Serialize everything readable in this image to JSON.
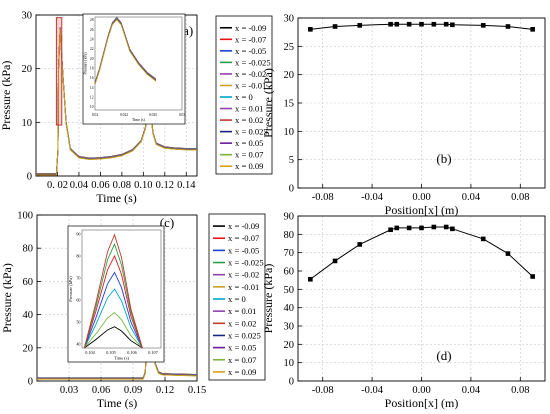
{
  "chart_data": [
    {
      "id": "a",
      "panel_label": "(a)",
      "type": "line",
      "xlabel": "Time (s)",
      "ylabel": "Pressure (kPa)",
      "xlim": [
        0.0,
        0.15
      ],
      "ylim": [
        0,
        30
      ],
      "xticks": [
        0.02,
        0.04,
        0.06,
        0.08,
        0.1,
        0.12,
        0.14
      ],
      "xtick_labels": [
        "0. 02",
        "0.04",
        "0.06",
        "0.08",
        "0.10",
        "0.12",
        "0.14"
      ],
      "yticks": [
        0,
        10,
        20,
        30
      ],
      "ytick_labels": [
        "0",
        "10",
        "20",
        "30"
      ],
      "grid": true,
      "legend_position": "right",
      "series": [
        {
          "name": "x = -0.09",
          "color": "#000000"
        },
        {
          "name": "x = -0.07",
          "color": "#e8141b"
        },
        {
          "name": "x = -0.05",
          "color": "#1f3fd8"
        },
        {
          "name": "x = -0.025",
          "color": "#2a9d4a"
        },
        {
          "name": "x = -0.02",
          "color": "#8e44ad"
        },
        {
          "name": "x = -0.01",
          "color": "#c9a227"
        },
        {
          "name": "x = 0",
          "color": "#00a6c8"
        },
        {
          "name": "x = 0.01",
          "color": "#8e44ad"
        },
        {
          "name": "x = 0.02",
          "color": "#c0392b"
        },
        {
          "name": "x = 0.025",
          "color": "#1a237e"
        },
        {
          "name": "x = 0.05",
          "color": "#6a1b9a"
        },
        {
          "name": "x = 0.07",
          "color": "#7cb342"
        },
        {
          "name": "x = 0.09",
          "color": "#d4a017"
        }
      ],
      "curve": {
        "x": [
          0.0,
          0.019,
          0.0205,
          0.021,
          0.0225,
          0.025,
          0.028,
          0.032,
          0.04,
          0.05,
          0.06,
          0.07,
          0.08,
          0.09,
          0.098,
          0.102,
          0.104,
          0.1055,
          0.107,
          0.109,
          0.112,
          0.12,
          0.13,
          0.14,
          0.15
        ],
        "y": [
          0.3,
          0.3,
          5.0,
          20.0,
          27.5,
          19.0,
          10.0,
          5.0,
          3.5,
          3.2,
          3.3,
          3.5,
          3.9,
          4.8,
          6.5,
          9.0,
          12.0,
          14.0,
          11.5,
          8.0,
          6.0,
          5.3,
          5.1,
          5.0,
          5.0
        ]
      },
      "highlight_box": {
        "x": [
          0.019,
          0.024
        ],
        "y": [
          9.5,
          29.5
        ]
      },
      "inset": {
        "xlim": [
          0.02,
          0.03
        ],
        "ylim": [
          0,
          28
        ],
        "xtick_labels": [
          "0.02",
          "0.022",
          "0.025",
          "0.03"
        ],
        "ytick_labels": [
          "28",
          "26",
          "24",
          "22",
          "20",
          "18",
          "16",
          "14",
          "12",
          "10"
        ],
        "xlabel": "Time (s)",
        "ylabel": "Pressure (kPa)",
        "curve": {
          "x": [
            0.02,
            0.0205,
            0.021,
            0.0215,
            0.022,
            0.0225,
            0.023,
            0.0235,
            0.024,
            0.025,
            0.026,
            0.027
          ],
          "y": [
            8,
            12,
            17,
            22,
            26,
            27.5,
            26,
            22,
            18,
            14,
            11,
            9
          ]
        }
      }
    },
    {
      "id": "b",
      "panel_label": "(b)",
      "type": "line",
      "xlabel": "Position[x] (m)",
      "ylabel": "Pressure (kPa)",
      "xlim": [
        -0.1,
        0.1
      ],
      "ylim": [
        0,
        30
      ],
      "xticks": [
        -0.08,
        -0.04,
        0.0,
        0.04,
        0.08
      ],
      "xtick_labels": [
        "-0.08",
        "-0.04",
        "0.00",
        "0.04",
        "0.08"
      ],
      "yticks": [
        0,
        5,
        10,
        15,
        20,
        25,
        30
      ],
      "ytick_labels": [
        "0",
        "5",
        "10",
        "15",
        "20",
        "25",
        "30"
      ],
      "grid": true,
      "x": [
        -0.09,
        -0.07,
        -0.05,
        -0.025,
        -0.02,
        -0.01,
        0.0,
        0.01,
        0.02,
        0.025,
        0.05,
        0.07,
        0.09
      ],
      "y": [
        28.0,
        28.5,
        28.7,
        28.9,
        28.9,
        28.9,
        28.9,
        28.9,
        28.9,
        28.8,
        28.7,
        28.5,
        28.0
      ]
    },
    {
      "id": "c",
      "panel_label": "(c)",
      "type": "line",
      "xlabel": "Time (s)",
      "ylabel": "Pressure (kPa)",
      "xlim": [
        0.0,
        0.15
      ],
      "ylim": [
        0,
        100
      ],
      "xticks": [
        0.03,
        0.06,
        0.09,
        0.12,
        0.15
      ],
      "xtick_labels": [
        "0.03",
        "0.06",
        "0.09",
        "0.12",
        "0.15"
      ],
      "yticks": [
        0,
        20,
        40,
        60,
        80,
        100
      ],
      "ytick_labels": [
        "0",
        "20",
        "40",
        "60",
        "80",
        "100"
      ],
      "grid": true,
      "legend_position": "right",
      "series": [
        {
          "name": "x = -0.09",
          "color": "#000000"
        },
        {
          "name": "x = -0.07",
          "color": "#e8141b"
        },
        {
          "name": "x = -0.05",
          "color": "#1f3fd8"
        },
        {
          "name": "x = -0.025",
          "color": "#2a9d4a"
        },
        {
          "name": "x = -0.02",
          "color": "#8e44ad"
        },
        {
          "name": "x = -0.01",
          "color": "#c9a227"
        },
        {
          "name": "x = 0",
          "color": "#00a6c8"
        },
        {
          "name": "x = 0.01",
          "color": "#8e44ad"
        },
        {
          "name": "x = 0.02",
          "color": "#c0392b"
        },
        {
          "name": "x = 0.025",
          "color": "#1a237e"
        },
        {
          "name": "x = 0.05",
          "color": "#6a1b9a"
        },
        {
          "name": "x = 0.07",
          "color": "#7cb342"
        },
        {
          "name": "x = 0.09",
          "color": "#d4a017"
        }
      ],
      "curve": {
        "x": [
          0.0,
          0.0995,
          0.1015,
          0.103,
          0.1045,
          0.1055,
          0.107,
          0.109,
          0.111,
          0.114,
          0.118,
          0.122,
          0.13,
          0.15
        ],
        "y": [
          1.5,
          1.5,
          5.0,
          25.0,
          55.0,
          75.0,
          50.0,
          22.0,
          10.0,
          5.0,
          4.0,
          4.0,
          3.8,
          3.5
        ]
      },
      "highlight_box": {
        "x": [
          0.1035,
          0.1075
        ],
        "y": [
          12,
          76
        ]
      },
      "inset": {
        "xlim": [
          0.1036,
          0.107
        ],
        "ylim": [
          40,
          90
        ],
        "xtick_labels": [
          "0.104",
          "0.105",
          "0.106",
          "0.107"
        ],
        "ytick_labels": [
          "90",
          "80",
          "70",
          "60",
          "50",
          "40"
        ],
        "xlabel": "Time (s)",
        "ylabel": "Pressure (kPa)",
        "peak_x": 0.105,
        "peaks": [
          49,
          55,
          65,
          72,
          79,
          84,
          88
        ],
        "peak_colors": [
          "#000000",
          "#7cb342",
          "#00a6c8",
          "#1f3fd8",
          "#e8141b",
          "#2a9d4a",
          "#c0392b"
        ]
      }
    },
    {
      "id": "d",
      "panel_label": "(d)",
      "type": "line",
      "xlabel": "Position[x] (m)",
      "ylabel": "Pressure (kPa)",
      "xlim": [
        -0.1,
        0.1
      ],
      "ylim": [
        0,
        90
      ],
      "xticks": [
        -0.08,
        -0.04,
        0.0,
        0.04,
        0.08
      ],
      "xtick_labels": [
        "-0.08",
        "-0.04",
        "0.00",
        "0.04",
        "0.08"
      ],
      "yticks": [
        0,
        10,
        20,
        30,
        40,
        50,
        60,
        70,
        80,
        90
      ],
      "ytick_labels": [
        "0",
        "10",
        "20",
        "30",
        "40",
        "50",
        "60",
        "70",
        "80",
        "90"
      ],
      "grid": true,
      "x": [
        -0.09,
        -0.07,
        -0.05,
        -0.025,
        -0.02,
        -0.01,
        0.0,
        0.01,
        0.02,
        0.025,
        0.05,
        0.07,
        0.09
      ],
      "y": [
        55.5,
        65.5,
        74.5,
        82.5,
        83.5,
        83.5,
        83.5,
        84.0,
        84.0,
        83.0,
        77.5,
        69.5,
        57.0
      ]
    }
  ]
}
